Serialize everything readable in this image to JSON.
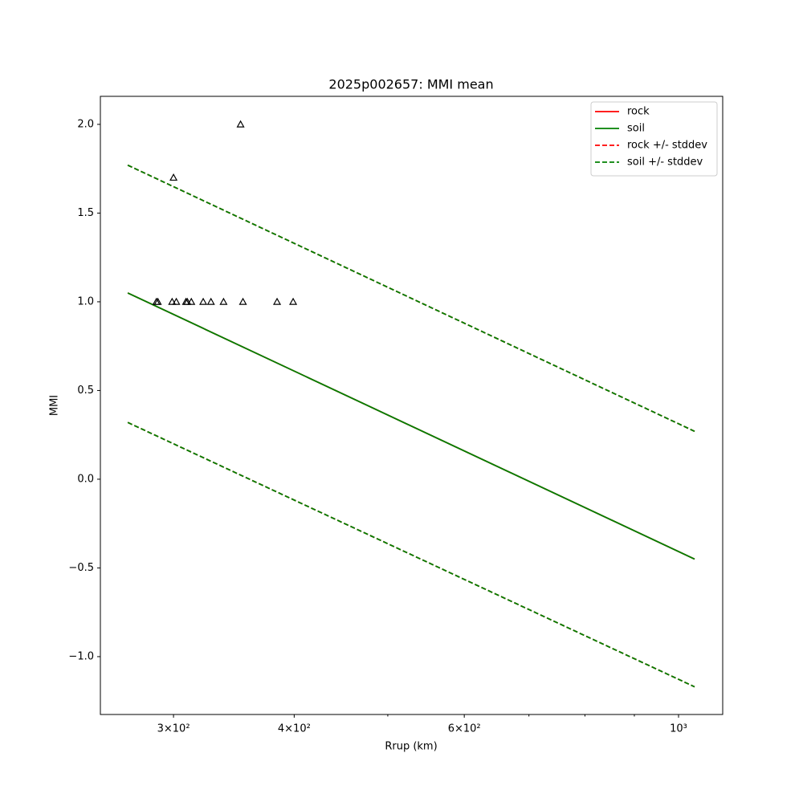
{
  "chart_data": {
    "type": "line",
    "title": "2025p002657: MMI mean",
    "xlabel": "Rrup (km)",
    "ylabel": "MMI",
    "xscale": "log",
    "xlim": [
      252,
      1111
    ],
    "ylim": [
      -1.326,
      2.158
    ],
    "xticks": [
      {
        "value": 300,
        "label": "3×10²"
      },
      {
        "value": 400,
        "label": "4×10²"
      },
      {
        "value": 600,
        "label": "6×10²"
      },
      {
        "value": 1000,
        "label": "10³"
      }
    ],
    "xminorticks": [
      500,
      700,
      800,
      900
    ],
    "yticks": [
      {
        "value": -1,
        "label": "−1.0"
      },
      {
        "value": -0.5,
        "label": "−0.5"
      },
      {
        "value": 0,
        "label": "0.0"
      },
      {
        "value": 0.5,
        "label": "0.5"
      },
      {
        "value": 1,
        "label": "1.0"
      },
      {
        "value": 1.5,
        "label": "1.5"
      },
      {
        "value": 2,
        "label": "2.0"
      }
    ],
    "legend": "upper right",
    "x": [
      269,
      1039
    ],
    "series": [
      {
        "name": "rock",
        "color": "#ff0000",
        "dashed": false,
        "values": [
          1.05,
          -0.45
        ]
      },
      {
        "name": "soil",
        "color": "#008000",
        "dashed": false,
        "values": [
          1.05,
          -0.45
        ]
      },
      {
        "name": "rock +/- stddev",
        "color": "#ff0000",
        "dashed": true,
        "upper": [
          1.77,
          0.27
        ],
        "lower": [
          0.32,
          -1.17
        ]
      },
      {
        "name": "soil +/- stddev",
        "color": "#008000",
        "dashed": true,
        "upper": [
          1.77,
          0.27
        ],
        "lower": [
          0.32,
          -1.17
        ]
      }
    ],
    "stations": {
      "marker": "triangle",
      "color": "#000000",
      "x": [
        288,
        289,
        299,
        302,
        309,
        310,
        313,
        322,
        328,
        338,
        354,
        384,
        399,
        300,
        352
      ],
      "values": [
        1,
        1,
        1,
        1,
        1,
        1,
        1,
        1,
        1,
        1,
        1,
        1,
        1,
        1.7,
        2
      ]
    }
  }
}
